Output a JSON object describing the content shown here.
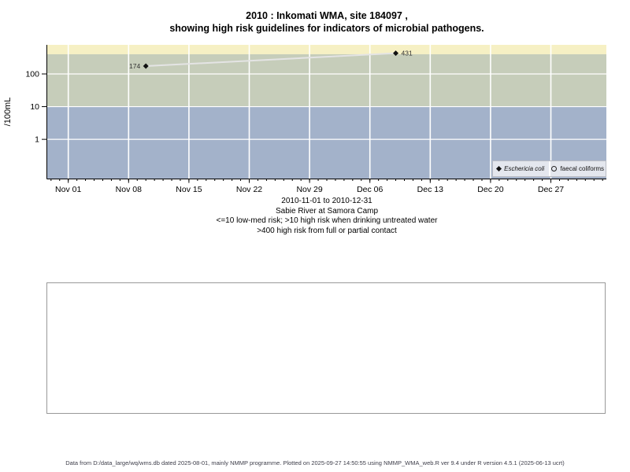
{
  "title": {
    "line1": "2010 : Inkomati WMA, site 184097 ,",
    "line2": "showing high risk guidelines for indicators of microbial pathogens."
  },
  "chart_data": {
    "type": "scatter",
    "ylabel": "/100mL",
    "y_scale": "log10",
    "ylim": [
      0.063,
      780
    ],
    "ylim_log": [
      -1.2,
      2.89
    ],
    "y_ticks": [
      1,
      10,
      100
    ],
    "y_tick_labels": [
      "1",
      "10",
      "100"
    ],
    "x_tick_labels": [
      "Nov 01",
      "Nov 08",
      "Nov 15",
      "Nov 22",
      "Nov 29",
      "Dec 06",
      "Dec 13",
      "Dec 20",
      "Dec 27"
    ],
    "x_tick_days": [
      0,
      7,
      14,
      21,
      28,
      35,
      42,
      49,
      56
    ],
    "xlim_days": [
      -2.44,
      62.44
    ],
    "x_minor_tick_step_days": 1,
    "x_range_label": "2010-11-01 to 2010-12-31",
    "grid": true,
    "gridline_color": "#ffffff",
    "bands": [
      {
        "name": "high-risk-contact",
        "from_value": 400,
        "to_value": 780,
        "color": "#f6f0c4"
      },
      {
        "name": "high-risk-drinking",
        "from_value": 10,
        "to_value": 400,
        "color": "#c6cdba"
      },
      {
        "name": "low-med-risk",
        "from_value": 0.063,
        "to_value": 10,
        "color": "#a3b2ca"
      }
    ],
    "series": [
      {
        "name": "Eschericia coli",
        "marker": "filled-diamond",
        "marker_color": "#111111",
        "line_color": "#e4e4e4",
        "points": [
          {
            "day": 9,
            "value": 174,
            "label": "174",
            "label_side": "left"
          },
          {
            "day": 38,
            "value": 431,
            "label": "431",
            "label_side": "right"
          }
        ]
      },
      {
        "name": "faecal coliforms",
        "marker": "open-circle",
        "marker_color": "#222222",
        "points": []
      }
    ],
    "legend": {
      "position": "bottom-right",
      "items": [
        {
          "symbol": "filled-diamond",
          "label": "Eschericia coli",
          "italic": true
        },
        {
          "symbol": "open-circle",
          "label": "faecal coliforms",
          "italic": false
        }
      ]
    }
  },
  "caption": {
    "line1": "2010-11-01 to 2010-12-31",
    "line2": "Sabie River at Samora Camp",
    "line3": "<=10 low-med risk; >10 high risk when drinking untreated water",
    "line4": ">400 high risk from full or partial contact"
  },
  "footer": {
    "text": "Data from D:/data_large/wq/wms.db dated 2025-08-01, mainly NMMP programme. Plotted on 2025-09-27 14:50:55 using NMMP_WMA_web.R ver 9.4 under R version 4.5.1 (2025-06-13 ucrt)"
  },
  "colors": {
    "band_contact": "#f6f0c4",
    "band_drinking": "#c6cdba",
    "band_lowmed": "#a3b2ca",
    "gridline": "#ffffff",
    "series_line": "#e4e4e4",
    "marker": "#111111",
    "axis": "#000000",
    "point_label": "#333333",
    "footer_text": "#3e3e4a"
  }
}
